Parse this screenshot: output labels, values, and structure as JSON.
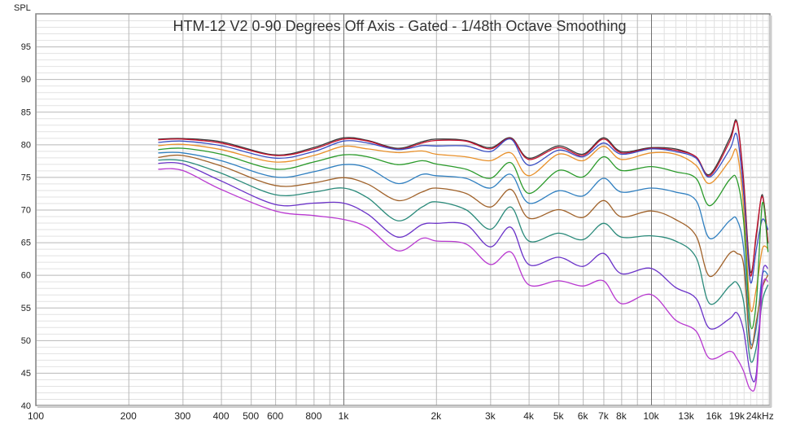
{
  "chart_data": {
    "type": "line",
    "title": "HTM-12 V2 0-90 Degrees Off Axis - Gated - 1/48th Octave Smoothing",
    "ylabel": "SPL",
    "xlabel": "",
    "xscale": "log",
    "xlim": [
      100,
      24000
    ],
    "ylim": [
      40,
      100
    ],
    "grid": true,
    "y_ticks": [
      {
        "value": 95,
        "label": "95"
      },
      {
        "value": 90,
        "label": "90"
      },
      {
        "value": 85,
        "label": "85"
      },
      {
        "value": 80,
        "label": "80"
      },
      {
        "value": 75,
        "label": "75"
      },
      {
        "value": 70,
        "label": "70"
      },
      {
        "value": 65,
        "label": "65"
      },
      {
        "value": 60,
        "label": "60"
      },
      {
        "value": 55,
        "label": "55"
      },
      {
        "value": 50,
        "label": "50"
      },
      {
        "value": 45,
        "label": "45"
      },
      {
        "value": 40,
        "label": "40"
      }
    ],
    "x_ticks": [
      {
        "value": 100,
        "label": "100",
        "color": "#222222"
      },
      {
        "value": 200,
        "label": "200",
        "color": "#222222"
      },
      {
        "value": 300,
        "label": "300",
        "color": "#222222"
      },
      {
        "value": 400,
        "label": "400",
        "color": "#222222"
      },
      {
        "value": 500,
        "label": "500",
        "color": "#222222"
      },
      {
        "value": 600,
        "label": "600",
        "color": "#222222"
      },
      {
        "value": 800,
        "label": "800",
        "color": "#222222"
      },
      {
        "value": 1000,
        "label": "1k",
        "color": "#222222"
      },
      {
        "value": 2000,
        "label": "2k",
        "color": "#222222"
      },
      {
        "value": 3000,
        "label": "3k",
        "color": "#222222"
      },
      {
        "value": 4000,
        "label": "4k",
        "color": "#222222"
      },
      {
        "value": 5000,
        "label": "5k",
        "color": "#222222"
      },
      {
        "value": 6000,
        "label": "6k",
        "color": "#222222"
      },
      {
        "value": 7000,
        "label": "7k",
        "color": "#222222"
      },
      {
        "value": 8000,
        "label": "8k",
        "color": "#222222"
      },
      {
        "value": 10000,
        "label": "10k",
        "color": "#222222"
      },
      {
        "value": 13000,
        "label": "13k",
        "color": "#a0a0a0"
      },
      {
        "value": 16000,
        "label": "16k",
        "color": "#a0a0a0"
      },
      {
        "value": 19000,
        "label": "19k",
        "color": "#a0a0a0"
      },
      {
        "value": 24000,
        "label": "24kHz",
        "color": "#222222"
      }
    ],
    "x": [
      250,
      300,
      400,
      600,
      800,
      1000,
      1200,
      1500,
      1800,
      2000,
      2500,
      3000,
      3500,
      4000,
      5000,
      6000,
      7000,
      8000,
      10000,
      12000,
      14000,
      15500,
      18000,
      19000,
      20000,
      21000,
      22000,
      23000,
      24000
    ],
    "series": [
      {
        "color": "#3a3a3a",
        "values": [
          80.8,
          80.9,
          80.4,
          78.4,
          79.5,
          81,
          80.6,
          79.4,
          80.4,
          80.8,
          80.6,
          79.5,
          81,
          77.9,
          79.75,
          78.5,
          81,
          78.9,
          79.5,
          79.3,
          78.1,
          75.4,
          80.9,
          83.5,
          74.4,
          60.6,
          66,
          72.3,
          64.8
        ]
      },
      {
        "color": "#c8102e",
        "values": [
          80.7,
          80.8,
          80.2,
          78.3,
          79.3,
          80.8,
          80.5,
          79.25,
          80.2,
          80.6,
          80.5,
          79.3,
          80.9,
          77.7,
          79.5,
          78.3,
          80.8,
          78.7,
          79.4,
          79.1,
          78.1,
          75.2,
          80.4,
          83.3,
          74,
          60,
          66.5,
          72,
          65
        ]
      },
      {
        "color": "#3a4fc4",
        "values": [
          80.3,
          80.5,
          79.8,
          77.9,
          78.9,
          80.5,
          80.2,
          79.2,
          79.8,
          79.75,
          79.75,
          78.9,
          80.8,
          76.8,
          79.1,
          78.1,
          80.2,
          78.5,
          79.3,
          78.9,
          77.9,
          75,
          79.2,
          81.4,
          72.3,
          59,
          64,
          68.5,
          66.9
        ]
      },
      {
        "color": "#e8902a",
        "values": [
          79.8,
          80,
          79.2,
          77.3,
          78.3,
          79.7,
          79.3,
          78.75,
          79,
          78.5,
          78.1,
          77.5,
          78.7,
          75.2,
          78.5,
          77.5,
          79.7,
          77.7,
          78.7,
          78.5,
          76.8,
          74,
          77.5,
          78.9,
          70.2,
          55,
          58,
          64,
          64
        ]
      },
      {
        "color": "#2a9a2a",
        "values": [
          79.2,
          79.4,
          78.5,
          76.2,
          77.3,
          78.4,
          78.1,
          76.9,
          77.5,
          77,
          76.2,
          74.8,
          77.2,
          72.5,
          76,
          75,
          78.1,
          76,
          76.6,
          75.8,
          74.8,
          70.6,
          74.6,
          74.6,
          68.1,
          52.5,
          56,
          71,
          63.5
        ]
      },
      {
        "color": "#2f7fc0",
        "values": [
          78.7,
          78.7,
          77.5,
          75,
          75.8,
          76.9,
          76.4,
          74,
          75.4,
          75.2,
          74.8,
          73.3,
          75.4,
          71,
          72.9,
          72.1,
          74.8,
          72.7,
          73.3,
          72.7,
          71.4,
          65.6,
          68.3,
          68.5,
          63.9,
          50,
          52,
          60,
          60
        ]
      },
      {
        "color": "#a0622a",
        "values": [
          78,
          78.3,
          76.7,
          73.7,
          74.1,
          74.9,
          73.9,
          71.4,
          72.7,
          73.3,
          72.5,
          70.4,
          73.1,
          68.7,
          70,
          68.8,
          71.4,
          68.9,
          69.8,
          68.5,
          66,
          59.8,
          63.3,
          63.3,
          61.4,
          49,
          53,
          58,
          60
        ]
      },
      {
        "color": "#2a8a7a",
        "values": [
          77.6,
          77.5,
          75.6,
          72.3,
          72.7,
          73.3,
          71.8,
          68.3,
          70.4,
          71.2,
          70,
          67,
          70.4,
          65.2,
          66.4,
          65.4,
          67.9,
          65.8,
          66,
          65.2,
          62.7,
          55.6,
          58.3,
          58.8,
          55.8,
          47,
          49,
          56,
          58.5
        ]
      },
      {
        "color": "#6a32c8",
        "values": [
          77.1,
          77,
          74.4,
          70.8,
          71,
          71,
          69.3,
          65.8,
          67.7,
          67.9,
          67.7,
          64.3,
          67.3,
          61.6,
          62.7,
          61.3,
          63.3,
          60.2,
          61,
          58.1,
          56.4,
          51.8,
          53.3,
          54.2,
          51.4,
          45,
          45,
          60,
          61
        ]
      },
      {
        "color": "#b838d0",
        "values": [
          76.2,
          76,
          73.1,
          69.8,
          69.1,
          68.5,
          67.25,
          63.7,
          65.6,
          65.2,
          64.75,
          61.6,
          63.5,
          58.5,
          59.1,
          58.3,
          59.1,
          55.6,
          57,
          53.1,
          51.4,
          47.2,
          48.3,
          47.2,
          45.2,
          42.5,
          44,
          58,
          59
        ]
      }
    ]
  }
}
